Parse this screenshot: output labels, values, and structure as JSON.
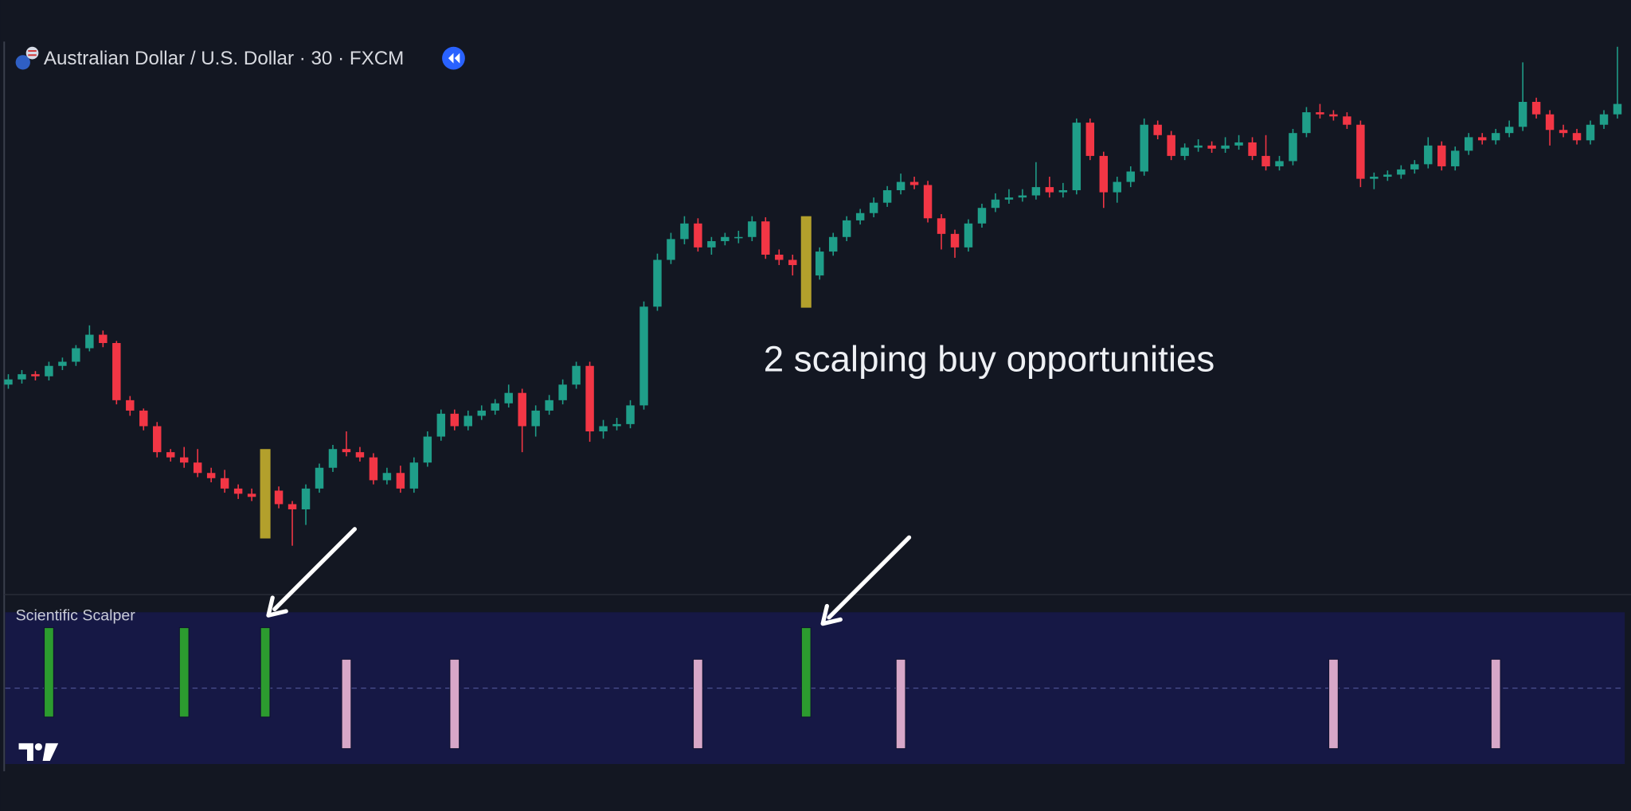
{
  "chart_data": [
    {
      "type": "candlestick",
      "title": "Australian Dollar / U.S. Dollar · 30 · FXCM",
      "annotation": "2 scalping buy opportunities",
      "up_color": "#1f9e89",
      "down_color": "#f23645",
      "highlight_color": "#b3a02c",
      "highlight_candles": [
        19,
        59
      ],
      "ylim": [
        30,
        560
      ],
      "open": [
        230,
        235,
        240,
        238,
        248,
        252,
        265,
        278,
        270,
        215,
        205,
        190,
        165,
        160,
        155,
        145,
        140,
        130,
        125,
        122,
        128,
        115,
        110,
        130,
        150,
        168,
        165,
        160,
        138,
        145,
        130,
        155,
        180,
        202,
        190,
        200,
        205,
        212,
        222,
        190,
        205,
        215,
        230,
        248,
        185,
        190,
        192,
        210,
        305,
        350,
        370,
        385,
        362,
        368,
        372,
        372,
        387,
        355,
        350,
        345,
        335,
        358,
        372,
        388,
        395,
        405,
        417,
        425,
        422,
        390,
        375,
        362,
        385,
        400,
        408,
        410,
        412,
        420,
        415,
        417,
        482,
        450,
        415,
        425,
        435,
        480,
        470,
        450,
        458,
        460,
        457,
        460,
        463,
        450,
        440,
        445,
        472,
        492,
        490,
        488,
        480,
        428,
        430,
        432,
        437,
        442,
        460,
        440,
        455,
        468,
        465,
        472,
        478,
        502,
        490,
        475,
        472,
        465,
        480,
        490
      ],
      "high": [
        240,
        244,
        243,
        252,
        256,
        268,
        287,
        282,
        272,
        219,
        207,
        194,
        168,
        170,
        168,
        150,
        148,
        134,
        130,
        168,
        132,
        118,
        134,
        154,
        172,
        185,
        170,
        164,
        150,
        152,
        160,
        185,
        206,
        206,
        205,
        210,
        216,
        230,
        226,
        210,
        220,
        235,
        252,
        252,
        196,
        198,
        215,
        310,
        356,
        376,
        392,
        390,
        372,
        376,
        378,
        392,
        391,
        360,
        355,
        392,
        362,
        376,
        392,
        399,
        410,
        421,
        433,
        430,
        426,
        394,
        379,
        389,
        404,
        414,
        418,
        418,
        444,
        430,
        424,
        486,
        486,
        454,
        430,
        440,
        486,
        484,
        474,
        462,
        466,
        464,
        468,
        470,
        468,
        470,
        450,
        476,
        497,
        500,
        494,
        492,
        484,
        434,
        436,
        441,
        446,
        468,
        464,
        459,
        472,
        472,
        476,
        484,
        540,
        506,
        494,
        480,
        476,
        484,
        494,
        555
      ],
      "low": [
        226,
        231,
        234,
        234,
        244,
        248,
        262,
        266,
        211,
        200,
        186,
        160,
        156,
        150,
        141,
        136,
        126,
        120,
        118,
        82,
        111,
        75,
        95,
        126,
        146,
        161,
        156,
        134,
        134,
        126,
        126,
        151,
        176,
        186,
        186,
        196,
        201,
        208,
        165,
        180,
        201,
        211,
        226,
        175,
        178,
        186,
        188,
        206,
        301,
        346,
        365,
        358,
        355,
        364,
        366,
        368,
        351,
        345,
        335,
        304,
        331,
        354,
        368,
        384,
        391,
        401,
        413,
        418,
        386,
        360,
        352,
        358,
        381,
        396,
        404,
        406,
        408,
        410,
        410,
        413,
        446,
        400,
        405,
        420,
        431,
        466,
        446,
        446,
        454,
        453,
        453,
        456,
        446,
        436,
        436,
        441,
        468,
        486,
        484,
        476,
        420,
        418,
        426,
        428,
        433,
        438,
        436,
        436,
        451,
        461,
        461,
        468,
        474,
        486,
        460,
        468,
        461,
        461,
        476,
        486
      ],
      "close": [
        235,
        240,
        238,
        248,
        252,
        265,
        278,
        270,
        215,
        205,
        190,
        165,
        160,
        155,
        145,
        140,
        130,
        125,
        122,
        128,
        115,
        110,
        130,
        150,
        168,
        165,
        160,
        138,
        145,
        130,
        155,
        180,
        202,
        190,
        200,
        205,
        212,
        222,
        190,
        205,
        215,
        230,
        248,
        185,
        190,
        192,
        210,
        305,
        350,
        370,
        385,
        362,
        368,
        372,
        372,
        387,
        355,
        350,
        345,
        335,
        358,
        372,
        388,
        395,
        405,
        417,
        425,
        422,
        390,
        375,
        362,
        385,
        400,
        408,
        410,
        412,
        420,
        415,
        417,
        482,
        450,
        415,
        425,
        435,
        480,
        470,
        450,
        458,
        460,
        457,
        460,
        463,
        450,
        440,
        445,
        472,
        492,
        490,
        488,
        480,
        428,
        430,
        432,
        437,
        442,
        460,
        440,
        455,
        468,
        465,
        472,
        478,
        502,
        490,
        475,
        472,
        465,
        480,
        490,
        500
      ]
    },
    {
      "type": "bar",
      "title": "Scientific Scalper",
      "positive_color": "#2c9b2f",
      "negative_color": "#d7a7c8",
      "ylim": [
        -4.8,
        4.8
      ],
      "values": [
        null,
        null,
        null,
        1,
        null,
        null,
        null,
        null,
        null,
        null,
        null,
        null,
        null,
        1,
        null,
        null,
        null,
        null,
        null,
        1,
        null,
        null,
        null,
        null,
        null,
        -1,
        null,
        null,
        null,
        null,
        null,
        null,
        null,
        -1,
        null,
        null,
        null,
        null,
        null,
        null,
        null,
        null,
        null,
        null,
        null,
        null,
        null,
        null,
        null,
        null,
        null,
        -1,
        null,
        null,
        null,
        null,
        null,
        null,
        null,
        1,
        null,
        null,
        null,
        null,
        null,
        null,
        -1,
        null,
        null,
        null,
        null,
        null,
        null,
        null,
        null,
        null,
        null,
        null,
        null,
        null,
        null,
        null,
        null,
        null,
        null,
        null,
        null,
        null,
        null,
        null,
        null,
        null,
        null,
        null,
        null,
        null,
        null,
        null,
        -1,
        null,
        null,
        null,
        null,
        null,
        null,
        null,
        null,
        null,
        null,
        null,
        -1,
        null,
        null,
        null,
        null,
        null,
        null,
        null,
        null,
        null
      ]
    }
  ]
}
